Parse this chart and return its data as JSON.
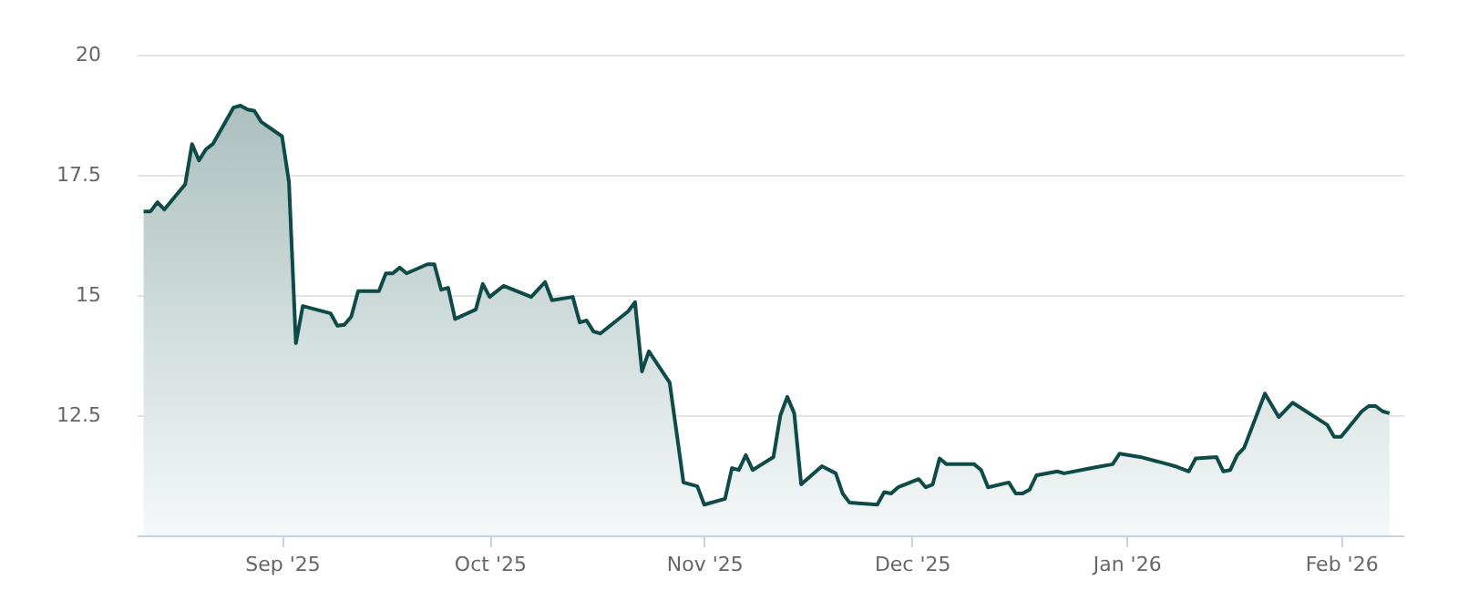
{
  "chart_data": {
    "type": "area",
    "x": [
      "2025-08-12",
      "2025-08-13",
      "2025-08-14",
      "2025-08-15",
      "2025-08-18",
      "2025-08-19",
      "2025-08-20",
      "2025-08-21",
      "2025-08-22",
      "2025-08-25",
      "2025-08-26",
      "2025-08-27",
      "2025-08-28",
      "2025-08-29",
      "2025-09-01",
      "2025-09-02",
      "2025-09-03",
      "2025-09-04",
      "2025-09-08",
      "2025-09-09",
      "2025-09-10",
      "2025-09-11",
      "2025-09-12",
      "2025-09-15",
      "2025-09-16",
      "2025-09-17",
      "2025-09-18",
      "2025-09-19",
      "2025-09-22",
      "2025-09-23",
      "2025-09-24",
      "2025-09-25",
      "2025-09-26",
      "2025-09-29",
      "2025-09-30",
      "2025-10-01",
      "2025-10-03",
      "2025-10-07",
      "2025-10-09",
      "2025-10-10",
      "2025-10-13",
      "2025-10-14",
      "2025-10-15",
      "2025-10-16",
      "2025-10-17",
      "2025-10-21",
      "2025-10-22",
      "2025-10-23",
      "2025-10-24",
      "2025-10-27",
      "2025-10-29",
      "2025-10-31",
      "2025-11-01",
      "2025-11-04",
      "2025-11-05",
      "2025-11-06",
      "2025-11-07",
      "2025-11-08",
      "2025-11-11",
      "2025-11-12",
      "2025-11-13",
      "2025-11-14",
      "2025-11-15",
      "2025-11-18",
      "2025-11-20",
      "2025-11-21",
      "2025-11-22",
      "2025-11-26",
      "2025-11-27",
      "2025-11-28",
      "2025-11-29",
      "2025-12-02",
      "2025-12-03",
      "2025-12-04",
      "2025-12-05",
      "2025-12-06",
      "2025-12-10",
      "2025-12-11",
      "2025-12-12",
      "2025-12-15",
      "2025-12-16",
      "2025-12-17",
      "2025-12-18",
      "2025-12-19",
      "2025-12-22",
      "2025-12-23",
      "2025-12-27",
      "2025-12-30",
      "2025-12-31",
      "2026-01-03",
      "2026-01-07",
      "2026-01-08",
      "2026-01-10",
      "2026-01-11",
      "2026-01-14",
      "2026-01-15",
      "2026-01-16",
      "2026-01-17",
      "2026-01-18",
      "2026-01-21",
      "2026-01-23",
      "2026-01-25",
      "2026-01-30",
      "2026-01-31",
      "2026-02-01",
      "2026-02-04",
      "2026-02-05",
      "2026-02-06",
      "2026-02-07",
      "2026-02-08"
    ],
    "series": [
      {
        "color": "#0e4a47",
        "values": [
          16.74,
          16.74,
          16.93,
          16.78,
          17.3,
          18.14,
          17.8,
          18.03,
          18.14,
          18.9,
          18.94,
          18.86,
          18.83,
          18.6,
          18.3,
          17.35,
          14.0,
          14.77,
          14.62,
          14.36,
          14.38,
          14.55,
          15.08,
          15.08,
          15.45,
          15.45,
          15.57,
          15.45,
          15.64,
          15.64,
          15.11,
          15.15,
          14.5,
          14.7,
          15.23,
          14.96,
          15.19,
          14.96,
          15.27,
          14.89,
          14.96,
          14.43,
          14.47,
          14.24,
          14.2,
          14.66,
          14.85,
          13.41,
          13.83,
          13.18,
          11.1,
          11.02,
          10.64,
          10.76,
          11.4,
          11.36,
          11.67,
          11.36,
          11.63,
          12.5,
          12.88,
          12.54,
          11.06,
          11.44,
          11.29,
          10.87,
          10.68,
          10.64,
          10.9,
          10.87,
          11.0,
          11.17,
          11.0,
          11.06,
          11.6,
          11.48,
          11.48,
          11.36,
          11.0,
          11.1,
          10.87,
          10.87,
          10.95,
          11.25,
          11.33,
          11.29,
          11.4,
          11.48,
          11.7,
          11.63,
          11.48,
          11.44,
          11.33,
          11.6,
          11.63,
          11.33,
          11.36,
          11.67,
          11.82,
          12.95,
          12.46,
          12.76,
          12.3,
          12.05,
          12.05,
          12.58,
          12.69,
          12.69,
          12.58,
          12.54
        ]
      }
    ],
    "xlim": [
      "2025-08-11",
      "2026-02-10"
    ],
    "xticks": [
      {
        "value": "2025-09-01",
        "label": "Sep '25"
      },
      {
        "value": "2025-10-01",
        "label": "Oct '25"
      },
      {
        "value": "2025-11-01",
        "label": "Nov '25"
      },
      {
        "value": "2025-12-01",
        "label": "Dec '25"
      },
      {
        "value": "2026-01-01",
        "label": "Jan '26"
      },
      {
        "value": "2026-02-01",
        "label": "Feb '26"
      }
    ],
    "ylim": [
      10,
      20
    ],
    "yticks": [
      12.5,
      15,
      17.5,
      20
    ],
    "grid": "y",
    "marker": "none",
    "line_style": "solid"
  }
}
